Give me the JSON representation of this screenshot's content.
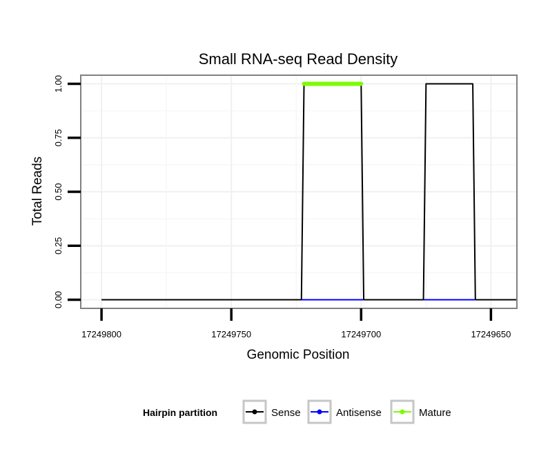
{
  "chart_data": {
    "type": "line",
    "title": "Small RNA-seq Read Density",
    "xlabel": "Genomic Position",
    "ylabel": "Total Reads",
    "x_reversed": true,
    "xlim": [
      17249808,
      17249640
    ],
    "ylim": [
      -0.04,
      1.04
    ],
    "x_ticks": [
      17249800,
      17249750,
      17249700,
      17249650
    ],
    "x_tick_labels": [
      "17249800",
      "17249750",
      "17249700",
      "17249650"
    ],
    "y_ticks": [
      0,
      0.25,
      0.5,
      0.75,
      1.0
    ],
    "y_tick_labels": [
      "0.00",
      "0.25",
      "0.50",
      "0.75",
      "1.00"
    ],
    "grid": true,
    "legend": {
      "title": "Hairpin partition",
      "position": "bottom",
      "entries": [
        {
          "label": "Sense",
          "color": "#000000"
        },
        {
          "label": "Antisense",
          "color": "#0000ff"
        },
        {
          "label": "Mature",
          "color": "#7cfc00"
        }
      ]
    },
    "series": [
      {
        "name": "Sense",
        "color": "#000000",
        "x": [
          17249800,
          17249723,
          17249722,
          17249700,
          17249699,
          17249676,
          17249675,
          17249657,
          17249656,
          17249640
        ],
        "y": [
          0,
          0,
          1,
          1,
          0,
          0,
          1,
          1,
          0,
          0
        ]
      },
      {
        "name": "Antisense",
        "color": "#0000ff",
        "x": [
          17249723,
          17249699,
          17249676,
          17249656
        ],
        "y": [
          0,
          0,
          0,
          0
        ],
        "segments": [
          [
            0,
            1
          ],
          [
            2,
            3
          ]
        ]
      },
      {
        "name": "Mature",
        "color": "#7cfc00",
        "x": [
          17249722,
          17249700
        ],
        "y": [
          1,
          1
        ]
      }
    ]
  }
}
